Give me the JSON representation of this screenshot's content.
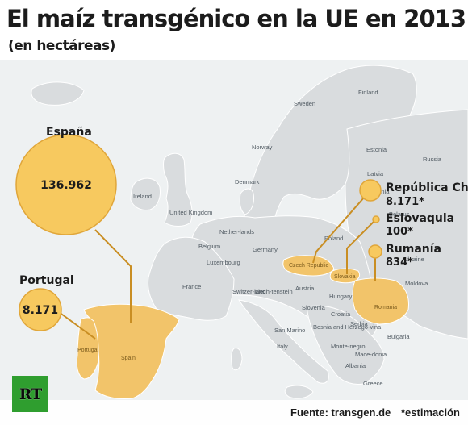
{
  "title": "El maíz transgénico en la UE en 2013",
  "subtitle": "(en hectáreas)",
  "map": {
    "colors": {
      "land": "#d9dcde",
      "water": "#eef1f2",
      "border": "#ffffff",
      "highlight": "#f2c46a",
      "bubble": "#f7c95f",
      "bubble_stroke": "#e0a63a",
      "leader": "#c98e23"
    },
    "country_labels": [
      "Finland",
      "Sweden",
      "Norway",
      "Estonia",
      "Latvia",
      "Denmark",
      "Lithuania",
      "Ireland",
      "United Kingdom",
      "Nether-lands",
      "Poland",
      "Belgium",
      "Germany",
      "Luxembourg",
      "France",
      "Switzer-land",
      "Liech-tenstein",
      "Austria",
      "Slovenia",
      "Croatia",
      "Bosnia and Herzego-vina",
      "Serbia",
      "Monte-negro",
      "Albania",
      "Mace-donia",
      "Bulgaria",
      "Greece",
      "Italy",
      "San Marino",
      "Hungary",
      "Ukraine",
      "Moldova",
      "Belarus",
      "Russia"
    ],
    "highlight_labels": [
      "Czech Republic",
      "Slovakia",
      "Romania",
      "Portugal",
      "Spain"
    ]
  },
  "callouts": [
    {
      "name": "España",
      "value": "136.962"
    },
    {
      "name": "Portugal",
      "value": "8.171"
    },
    {
      "name": "República Checa",
      "value": "8.171*"
    },
    {
      "name": "Eslovaquia",
      "value": "100*"
    },
    {
      "name": "Rumanía",
      "value": "834*"
    }
  ],
  "footer": {
    "source": "Fuente: transgen.de",
    "note": "*estimación"
  },
  "logo": {
    "text": "RT"
  }
}
